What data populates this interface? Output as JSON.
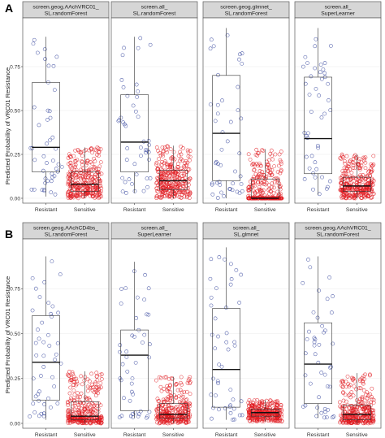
{
  "figure": {
    "ylabel": "Predicted Probability of VRC01 Resistance",
    "colors": {
      "resistant": "#2f3f9a",
      "sensitive": "#e0191e",
      "strip_fill": "#d6d6d6",
      "panel_border": "#5a5a5a",
      "box_line": "#333333",
      "grid": "#ebebeb"
    }
  },
  "chart_data": [
    {
      "id": "A",
      "label": "A",
      "type": "boxplot_jitter",
      "categories": [
        "Resistant",
        "Sensitive"
      ],
      "ylim": [
        0,
        1
      ],
      "yticks": [
        "0.00",
        "0.25",
        "0.50",
        "0.75"
      ],
      "ytick_values": [
        0,
        0.25,
        0.5,
        0.75
      ],
      "grid": true,
      "panels": [
        {
          "title": [
            "screen.geog.AAchVRC01_",
            "SL.randomForest"
          ],
          "boxes": [
            {
              "category": "Resistant",
              "min": 0.01,
              "q1": 0.15,
              "median": 0.29,
              "q3": 0.66,
              "max": 0.92,
              "n": 45
            },
            {
              "category": "Sensitive",
              "min": 0.0,
              "q1": 0.04,
              "median": 0.08,
              "q3": 0.15,
              "max": 0.29,
              "n": 300
            }
          ]
        },
        {
          "title": [
            "screen.all_",
            "SL.randomForest"
          ],
          "boxes": [
            {
              "category": "Resistant",
              "min": 0.03,
              "q1": 0.15,
              "median": 0.32,
              "q3": 0.59,
              "max": 0.92,
              "n": 45
            },
            {
              "category": "Sensitive",
              "min": 0.0,
              "q1": 0.05,
              "median": 0.1,
              "q3": 0.16,
              "max": 0.3,
              "n": 300
            }
          ]
        },
        {
          "title": [
            "screen.geog.glmnet_",
            "SL.randomForest"
          ],
          "boxes": [
            {
              "category": "Resistant",
              "min": 0.0,
              "q1": 0.1,
              "median": 0.37,
              "q3": 0.7,
              "max": 0.97,
              "n": 45
            },
            {
              "category": "Sensitive",
              "min": 0.0,
              "q1": 0.0,
              "median": 0.0,
              "q3": 0.11,
              "max": 0.28,
              "n": 300
            }
          ]
        },
        {
          "title": [
            "screen.all_",
            "SuperLearner"
          ],
          "boxes": [
            {
              "category": "Resistant",
              "min": 0.02,
              "q1": 0.14,
              "median": 0.34,
              "q3": 0.69,
              "max": 0.97,
              "n": 45
            },
            {
              "category": "Sensitive",
              "min": 0.0,
              "q1": 0.04,
              "median": 0.07,
              "q3": 0.12,
              "max": 0.25,
              "n": 300
            }
          ]
        }
      ]
    },
    {
      "id": "B",
      "label": "B",
      "type": "boxplot_jitter",
      "categories": [
        "Resistant",
        "Sensitive"
      ],
      "ylim": [
        0,
        1
      ],
      "yticks": [
        "0.00",
        "0.25",
        "0.50",
        "0.75"
      ],
      "ytick_values": [
        0,
        0.25,
        0.5,
        0.75
      ],
      "grid": true,
      "panels": [
        {
          "title": [
            "screen.geog.AAchCD4bs_",
            "SL.randomForest"
          ],
          "boxes": [
            {
              "category": "Resistant",
              "min": 0.02,
              "q1": 0.13,
              "median": 0.34,
              "q3": 0.6,
              "max": 0.93,
              "n": 45
            },
            {
              "category": "Sensitive",
              "min": 0.0,
              "q1": 0.02,
              "median": 0.04,
              "q3": 0.12,
              "max": 0.29,
              "n": 300
            }
          ]
        },
        {
          "title": [
            "screen.all_",
            "SuperLearner"
          ],
          "boxes": [
            {
              "category": "Resistant",
              "min": 0.03,
              "q1": 0.07,
              "median": 0.38,
              "q3": 0.52,
              "max": 0.9,
              "n": 45
            },
            {
              "category": "Sensitive",
              "min": 0.0,
              "q1": 0.03,
              "median": 0.05,
              "q3": 0.11,
              "max": 0.26,
              "n": 300
            }
          ]
        },
        {
          "title": [
            "screen.all_",
            "SL.glmnet"
          ],
          "boxes": [
            {
              "category": "Resistant",
              "min": 0.02,
              "q1": 0.09,
              "median": 0.3,
              "q3": 0.64,
              "max": 0.98,
              "n": 45
            },
            {
              "category": "Sensitive",
              "min": 0.01,
              "q1": 0.04,
              "median": 0.06,
              "q3": 0.08,
              "max": 0.13,
              "n": 300
            }
          ]
        },
        {
          "title": [
            "screen.geog.AAchVRC01_",
            "SL.randomForest"
          ],
          "boxes": [
            {
              "category": "Resistant",
              "min": 0.03,
              "q1": 0.11,
              "median": 0.33,
              "q3": 0.56,
              "max": 0.93,
              "n": 45
            },
            {
              "category": "Sensitive",
              "min": 0.0,
              "q1": 0.02,
              "median": 0.05,
              "q3": 0.1,
              "max": 0.28,
              "n": 300
            }
          ]
        }
      ]
    }
  ]
}
